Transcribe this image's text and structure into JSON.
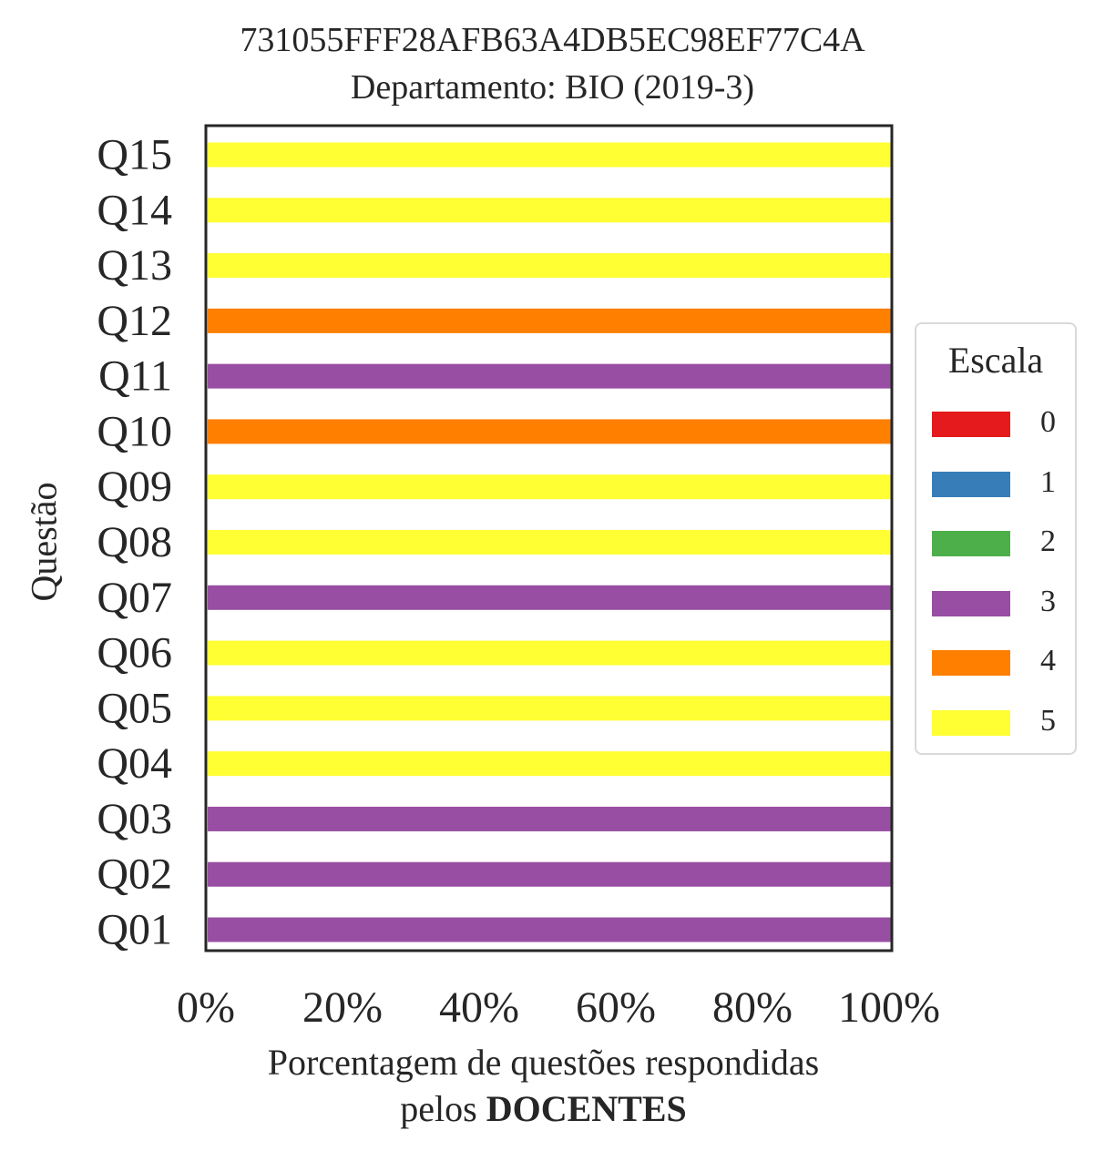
{
  "chart_data": {
    "type": "bar",
    "orientation": "horizontal",
    "stacked": true,
    "title": "731055FFF28AFB63A4DB5EC98EF77C4A",
    "subtitle": "Departamento: BIO (2019-3)",
    "xlabel_line1": "Porcentagem de questões respondidas",
    "xlabel_line2_prefix": "pelos ",
    "xlabel_line2_bold": "DOCENTES",
    "ylabel": "Questão",
    "xlim": [
      0,
      100
    ],
    "xticks": [
      "0%",
      "20%",
      "40%",
      "60%",
      "80%",
      "100%"
    ],
    "categories": [
      "Q01",
      "Q02",
      "Q03",
      "Q04",
      "Q05",
      "Q06",
      "Q07",
      "Q08",
      "Q09",
      "Q10",
      "Q11",
      "Q12",
      "Q13",
      "Q14",
      "Q15"
    ],
    "legend_title": "Escala",
    "legend_position": "right",
    "series": [
      {
        "name": "0",
        "color": "#e41a1c",
        "values": [
          0,
          0,
          0,
          0,
          0,
          0,
          0,
          0,
          0,
          0,
          0,
          0,
          0,
          0,
          0
        ]
      },
      {
        "name": "1",
        "color": "#377eb8",
        "values": [
          0,
          0,
          0,
          0,
          0,
          0,
          0,
          0,
          0,
          0,
          0,
          0,
          0,
          0,
          0
        ]
      },
      {
        "name": "2",
        "color": "#4daf4a",
        "values": [
          0,
          0,
          0,
          0,
          0,
          0,
          0,
          0,
          0,
          0,
          0,
          0,
          0,
          0,
          0
        ]
      },
      {
        "name": "3",
        "color": "#984ea3",
        "values": [
          100,
          100,
          100,
          0,
          0,
          0,
          100,
          0,
          0,
          0,
          100,
          0,
          0,
          0,
          0
        ]
      },
      {
        "name": "4",
        "color": "#ff7f00",
        "values": [
          0,
          0,
          0,
          0,
          0,
          0,
          0,
          0,
          0,
          100,
          0,
          100,
          0,
          0,
          0
        ]
      },
      {
        "name": "5",
        "color": "#ffff33",
        "values": [
          0,
          0,
          0,
          100,
          100,
          100,
          0,
          100,
          100,
          0,
          0,
          0,
          100,
          100,
          100
        ]
      }
    ]
  }
}
